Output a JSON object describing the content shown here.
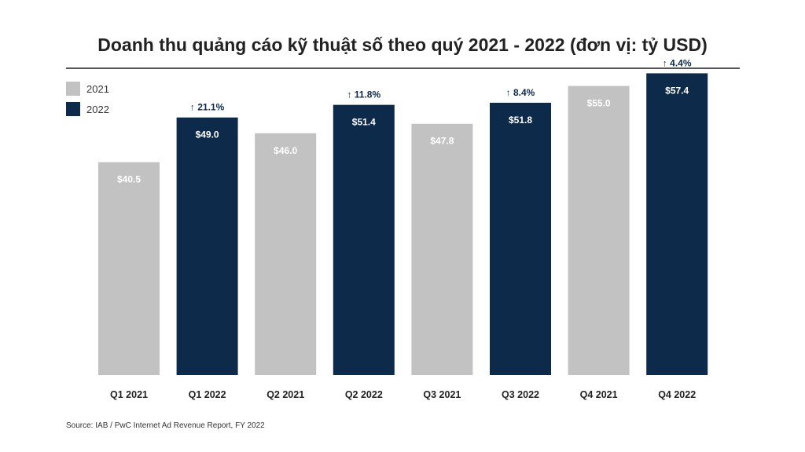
{
  "chart_data": {
    "type": "bar",
    "title": "Doanh thu quảng cáo kỹ thuật số theo quý 2021 - 2022 (đơn vị: tỷ USD)",
    "categories": [
      "Q1 2021",
      "Q1 2022",
      "Q2 2021",
      "Q2 2022",
      "Q3 2021",
      "Q3 2022",
      "Q4 2021",
      "Q4 2022"
    ],
    "values": [
      40.5,
      49.0,
      46.0,
      51.4,
      47.8,
      51.8,
      55.0,
      57.4
    ],
    "value_labels": [
      "$40.5",
      "$49.0",
      "$46.0",
      "$51.4",
      "$47.8",
      "$51.8",
      "$55.0",
      "$57.4"
    ],
    "bar_series": [
      "2021",
      "2022",
      "2021",
      "2022",
      "2021",
      "2022",
      "2021",
      "2022"
    ],
    "growth_labels": [
      "",
      "↑ 21.1%",
      "",
      "↑ 11.8%",
      "",
      "↑ 8.4%",
      "",
      "↑ 4.4%"
    ],
    "legend": [
      {
        "name": "2021",
        "color": "#c2c2c2"
      },
      {
        "name": "2022",
        "color": "#0d2a4a"
      }
    ],
    "legend_position": "top-left",
    "ylim": [
      0,
      60
    ],
    "grid": false,
    "xlabel": "",
    "ylabel": ""
  },
  "source": "Source: IAB / PwC Internet Ad Revenue Report, FY 2022"
}
